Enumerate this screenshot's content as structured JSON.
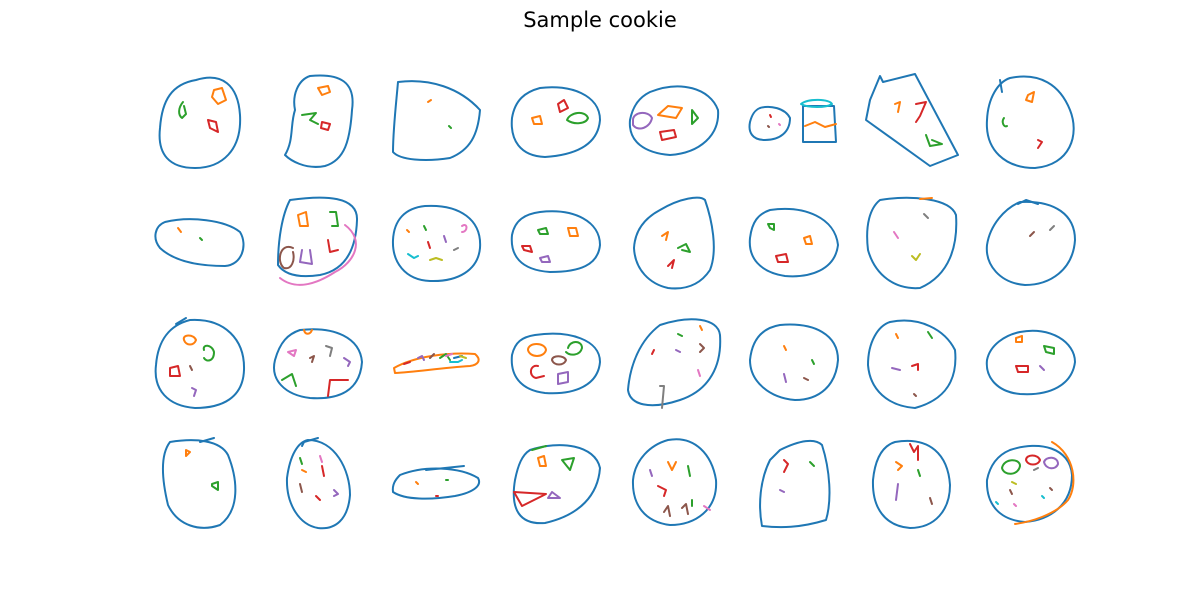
{
  "title": "Sample cookie",
  "grid": {
    "rows": 4,
    "columns": 8
  },
  "stroke_colors": {
    "outline": "#1f77b4",
    "chip_palette": [
      "#ff7f0e",
      "#2ca02c",
      "#d62728",
      "#9467bd",
      "#8c564b",
      "#e377c2",
      "#7f7f7f",
      "#bcbd22",
      "#17becf"
    ]
  }
}
